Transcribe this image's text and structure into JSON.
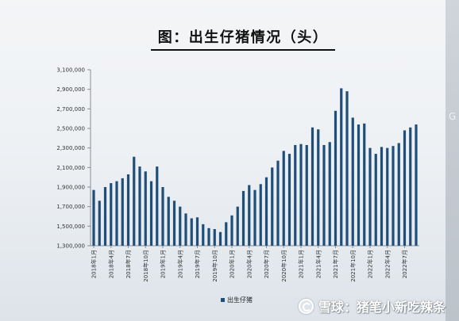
{
  "edge_panel": {
    "letter": "G"
  },
  "watermark": {
    "text": "雪球：猪笔小新吃辣条"
  },
  "colors": {
    "bar": "#1f4e79",
    "axis": "#8a8f95",
    "text": "#333333"
  },
  "chart_data": {
    "type": "bar",
    "title": "图：出生仔猪情况（头）",
    "x_tick_labels": [
      "2018年1月",
      "2018年4月",
      "2018年7月",
      "2018年10月",
      "2019年1月",
      "2019年4月",
      "2019年7月",
      "2019年10月",
      "2020年1月",
      "2020年4月",
      "2020年7月",
      "2020年10月",
      "2021年1月",
      "2021年4月",
      "2021年7月",
      "2021年10月",
      "2022年1月",
      "2022年4月",
      "2022年7月"
    ],
    "y_ticks": [
      "1,300,000",
      "1,500,000",
      "1,700,000",
      "1,900,000",
      "2,100,000",
      "2,300,000",
      "2,500,000",
      "2,700,000",
      "2,900,000",
      "3,100,000"
    ],
    "ylim": [
      1300000,
      3100000
    ],
    "grid": false,
    "legend_position": "bottom",
    "series": [
      {
        "name": "出生仔猪",
        "values": [
          1870000,
          1760000,
          1900000,
          1940000,
          1960000,
          1990000,
          2030000,
          2210000,
          2110000,
          2060000,
          1960000,
          2110000,
          1900000,
          1800000,
          1760000,
          1700000,
          1630000,
          1580000,
          1590000,
          1520000,
          1480000,
          1470000,
          1440000,
          1540000,
          1610000,
          1700000,
          1860000,
          1920000,
          1870000,
          1930000,
          2000000,
          2100000,
          2170000,
          2270000,
          2240000,
          2330000,
          2340000,
          2330000,
          2510000,
          2490000,
          2330000,
          2360000,
          2680000,
          2910000,
          2880000,
          2610000,
          2540000,
          2550000,
          2300000,
          2240000,
          2310000,
          2300000,
          2320000,
          2350000,
          2480000,
          2510000,
          2540000
        ]
      }
    ]
  }
}
